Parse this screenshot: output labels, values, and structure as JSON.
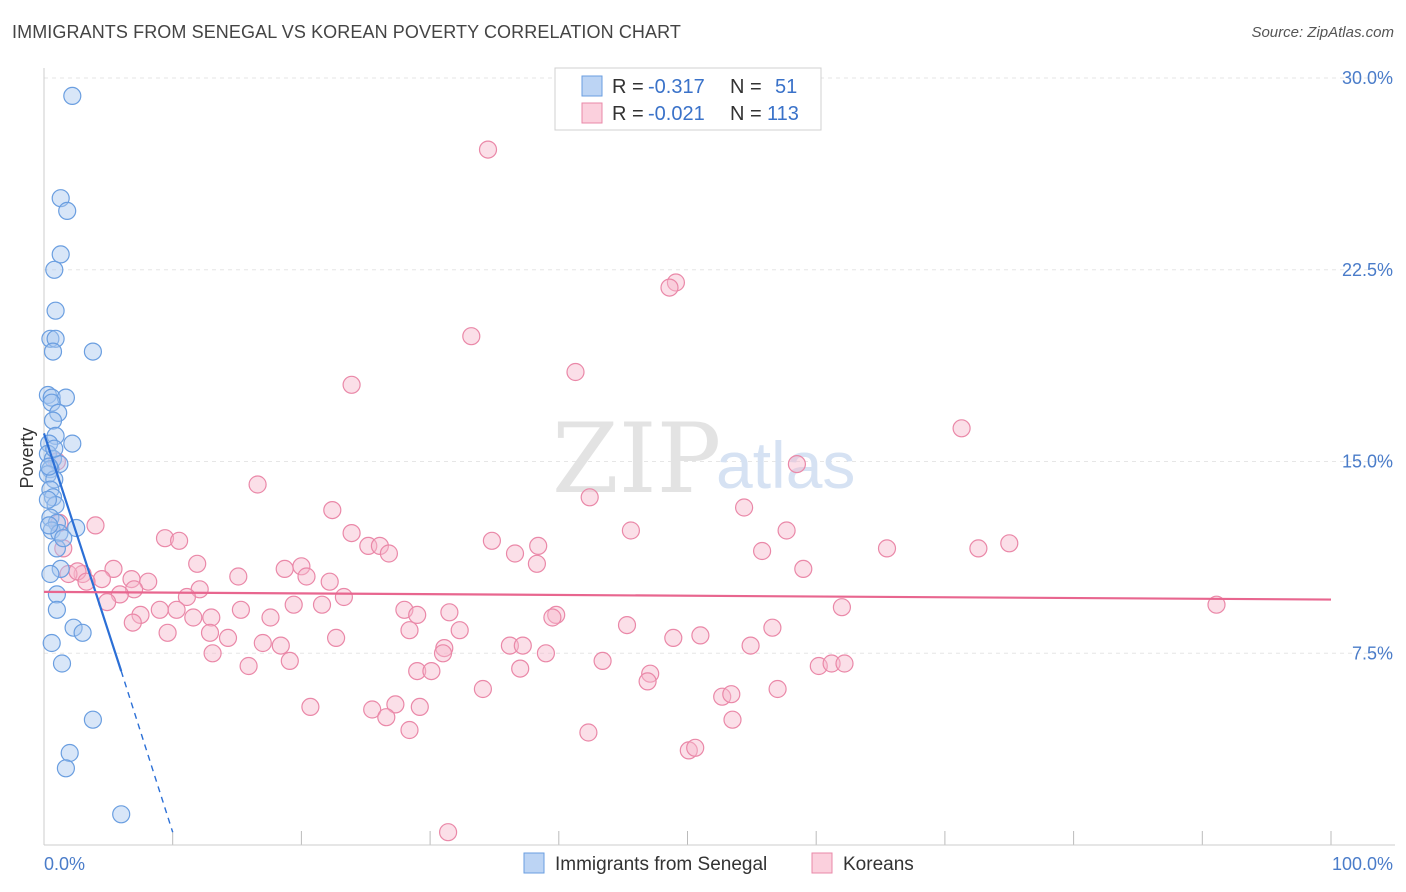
{
  "title": "IMMIGRANTS FROM SENEGAL VS KOREAN POVERTY CORRELATION CHART",
  "source": "Source: ZipAtlas.com",
  "watermark": {
    "zip": "ZIP",
    "atlas": "atlas"
  },
  "colors": {
    "blue_fill": "#a8c8f0",
    "blue_stroke": "#6a9ee0",
    "blue_line": "#2b6fd6",
    "pink_fill": "#f6b7cb",
    "pink_stroke": "#ea88a8",
    "pink_line": "#e8668f",
    "grid": "#e6e6e6",
    "tick_text": "#4a7cc9"
  },
  "legend": {
    "rows": [
      {
        "r_label": "R =",
        "r_value": "-0.317",
        "n_label": "N =",
        "n_value": "51",
        "series": "blue"
      },
      {
        "r_label": "R =",
        "r_value": "-0.021",
        "n_label": "N =",
        "n_value": "113",
        "series": "pink"
      }
    ]
  },
  "bottom_legend": [
    {
      "label": "Immigrants from Senegal",
      "series": "blue"
    },
    {
      "label": "Koreans",
      "series": "pink"
    }
  ],
  "chart_data": {
    "type": "scatter",
    "title": "IMMIGRANTS FROM SENEGAL VS KOREAN POVERTY CORRELATION CHART",
    "xlabel": "",
    "ylabel": "Poverty",
    "xlim": [
      0,
      100
    ],
    "ylim": [
      0,
      30
    ],
    "x_tick_labels": [
      {
        "value": 0,
        "label": "0.0%"
      },
      {
        "value": 100,
        "label": "100.0%"
      }
    ],
    "x_minor_ticks": [
      10,
      20,
      30,
      40,
      50,
      60,
      70,
      80,
      90,
      100
    ],
    "y_ticks": [
      {
        "value": 7.5,
        "label": "7.5%"
      },
      {
        "value": 15,
        "label": "15.0%"
      },
      {
        "value": 22.5,
        "label": "22.5%"
      },
      {
        "value": 30,
        "label": "30.0%"
      }
    ],
    "series": [
      {
        "name": "Immigrants from Senegal",
        "color": "blue",
        "trend": {
          "x0": 0.0,
          "y0": 16.1,
          "x1": 6.0,
          "y1": 6.8,
          "dash_to_x": 10.0,
          "dash_to_y": 0.5
        },
        "points": [
          [
            2.2,
            29.3
          ],
          [
            1.3,
            25.3
          ],
          [
            1.8,
            24.8
          ],
          [
            1.3,
            23.1
          ],
          [
            0.8,
            22.5
          ],
          [
            0.9,
            20.9
          ],
          [
            0.5,
            19.8
          ],
          [
            0.9,
            19.8
          ],
          [
            0.7,
            19.3
          ],
          [
            3.8,
            19.3
          ],
          [
            0.3,
            17.6
          ],
          [
            0.6,
            17.5
          ],
          [
            1.7,
            17.5
          ],
          [
            0.6,
            17.3
          ],
          [
            1.1,
            16.9
          ],
          [
            0.7,
            16.6
          ],
          [
            0.9,
            16.0
          ],
          [
            0.4,
            15.7
          ],
          [
            2.2,
            15.7
          ],
          [
            0.3,
            15.3
          ],
          [
            0.7,
            15.1
          ],
          [
            1.2,
            14.9
          ],
          [
            0.5,
            14.7
          ],
          [
            0.3,
            14.5
          ],
          [
            0.8,
            14.3
          ],
          [
            0.5,
            13.9
          ],
          [
            0.7,
            13.6
          ],
          [
            0.9,
            13.3
          ],
          [
            0.5,
            12.8
          ],
          [
            1.0,
            12.6
          ],
          [
            0.6,
            12.3
          ],
          [
            1.2,
            12.2
          ],
          [
            0.4,
            12.5
          ],
          [
            2.5,
            12.4
          ],
          [
            1.0,
            11.6
          ],
          [
            1.3,
            10.8
          ],
          [
            0.5,
            10.6
          ],
          [
            1.0,
            9.8
          ],
          [
            1.0,
            9.2
          ],
          [
            2.3,
            8.5
          ],
          [
            3.0,
            8.3
          ],
          [
            0.6,
            7.9
          ],
          [
            1.4,
            7.1
          ],
          [
            3.8,
            4.9
          ],
          [
            2.0,
            3.6
          ],
          [
            1.7,
            3.0
          ],
          [
            6.0,
            1.2
          ],
          [
            0.4,
            14.8
          ],
          [
            0.8,
            15.5
          ],
          [
            1.5,
            12.0
          ],
          [
            0.3,
            13.5
          ]
        ]
      },
      {
        "name": "Koreans",
        "color": "pink",
        "trend": {
          "x0": 0.0,
          "y0": 9.9,
          "x1": 100.0,
          "y1": 9.6
        },
        "points": [
          [
            34.5,
            27.2
          ],
          [
            49.1,
            22.0
          ],
          [
            48.6,
            21.8
          ],
          [
            33.2,
            19.9
          ],
          [
            41.3,
            18.5
          ],
          [
            23.9,
            18.0
          ],
          [
            71.3,
            16.3
          ],
          [
            58.5,
            14.9
          ],
          [
            16.6,
            14.1
          ],
          [
            1.0,
            15.0
          ],
          [
            42.4,
            13.6
          ],
          [
            22.4,
            13.1
          ],
          [
            1.2,
            12.6
          ],
          [
            4.0,
            12.5
          ],
          [
            54.4,
            13.2
          ],
          [
            45.6,
            12.3
          ],
          [
            57.7,
            12.3
          ],
          [
            23.9,
            12.2
          ],
          [
            9.4,
            12.0
          ],
          [
            10.5,
            11.9
          ],
          [
            34.8,
            11.9
          ],
          [
            25.2,
            11.7
          ],
          [
            26.1,
            11.7
          ],
          [
            38.4,
            11.7
          ],
          [
            1.5,
            11.6
          ],
          [
            26.8,
            11.4
          ],
          [
            36.6,
            11.4
          ],
          [
            55.8,
            11.5
          ],
          [
            65.5,
            11.6
          ],
          [
            72.6,
            11.6
          ],
          [
            75.0,
            11.8
          ],
          [
            38.3,
            11.0
          ],
          [
            11.9,
            11.0
          ],
          [
            18.7,
            10.8
          ],
          [
            20.0,
            10.9
          ],
          [
            59.0,
            10.8
          ],
          [
            5.4,
            10.8
          ],
          [
            3.0,
            10.6
          ],
          [
            1.9,
            10.6
          ],
          [
            4.5,
            10.4
          ],
          [
            6.8,
            10.4
          ],
          [
            8.1,
            10.3
          ],
          [
            15.1,
            10.5
          ],
          [
            20.4,
            10.5
          ],
          [
            22.2,
            10.3
          ],
          [
            2.6,
            10.7
          ],
          [
            3.3,
            10.3
          ],
          [
            7.0,
            10.0
          ],
          [
            12.1,
            10.0
          ],
          [
            11.1,
            9.7
          ],
          [
            5.9,
            9.8
          ],
          [
            4.9,
            9.5
          ],
          [
            23.3,
            9.7
          ],
          [
            19.4,
            9.4
          ],
          [
            21.6,
            9.4
          ],
          [
            9.0,
            9.2
          ],
          [
            10.3,
            9.2
          ],
          [
            15.3,
            9.2
          ],
          [
            28.0,
            9.2
          ],
          [
            31.5,
            9.1
          ],
          [
            62.0,
            9.3
          ],
          [
            91.1,
            9.4
          ],
          [
            7.5,
            9.0
          ],
          [
            11.6,
            8.9
          ],
          [
            13.0,
            8.9
          ],
          [
            17.6,
            8.9
          ],
          [
            29.0,
            9.0
          ],
          [
            39.8,
            9.0
          ],
          [
            39.5,
            8.9
          ],
          [
            6.9,
            8.7
          ],
          [
            45.3,
            8.6
          ],
          [
            56.6,
            8.5
          ],
          [
            9.6,
            8.3
          ],
          [
            12.9,
            8.3
          ],
          [
            14.3,
            8.1
          ],
          [
            28.4,
            8.4
          ],
          [
            32.3,
            8.4
          ],
          [
            48.9,
            8.1
          ],
          [
            51.0,
            8.2
          ],
          [
            22.7,
            8.1
          ],
          [
            17.0,
            7.9
          ],
          [
            18.4,
            7.8
          ],
          [
            31.1,
            7.7
          ],
          [
            36.2,
            7.8
          ],
          [
            37.2,
            7.8
          ],
          [
            54.9,
            7.8
          ],
          [
            13.1,
            7.5
          ],
          [
            19.1,
            7.2
          ],
          [
            15.9,
            7.0
          ],
          [
            31.0,
            7.5
          ],
          [
            39.0,
            7.5
          ],
          [
            43.4,
            7.2
          ],
          [
            60.2,
            7.0
          ],
          [
            61.2,
            7.1
          ],
          [
            62.2,
            7.1
          ],
          [
            29.0,
            6.8
          ],
          [
            30.1,
            6.8
          ],
          [
            37.0,
            6.9
          ],
          [
            47.1,
            6.7
          ],
          [
            46.9,
            6.4
          ],
          [
            34.1,
            6.1
          ],
          [
            57.0,
            6.1
          ],
          [
            52.7,
            5.8
          ],
          [
            53.4,
            5.9
          ],
          [
            20.7,
            5.4
          ],
          [
            25.5,
            5.3
          ],
          [
            27.3,
            5.5
          ],
          [
            29.2,
            5.4
          ],
          [
            26.6,
            5.0
          ],
          [
            53.5,
            4.9
          ],
          [
            28.4,
            4.5
          ],
          [
            42.3,
            4.4
          ],
          [
            50.1,
            3.7
          ],
          [
            50.6,
            3.8
          ],
          [
            31.4,
            0.5
          ]
        ]
      }
    ]
  }
}
